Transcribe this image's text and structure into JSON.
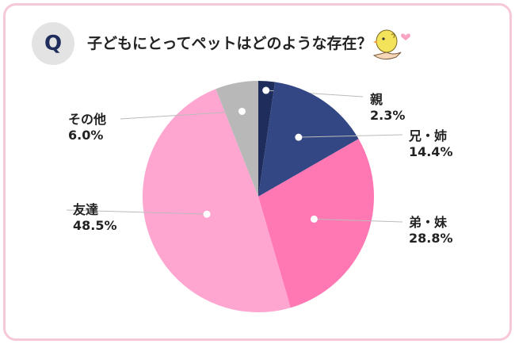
{
  "question": {
    "badge": "Q",
    "text": "子どもにとってペットはどのような存在？"
  },
  "icon": "chick-holding-heart-icon",
  "colors": {
    "border": "#f7c9d6",
    "parents": "#1f2d5c",
    "older_siblings": "#344785",
    "younger_siblings": "#ff78b4",
    "friends": "#ffa6d0",
    "other": "#b8b8b8"
  },
  "chart_data": {
    "type": "pie",
    "start": "12 o'clock",
    "direction": "clockwise",
    "slices": [
      {
        "label": "親",
        "value": 2.3,
        "display": "2.3%",
        "color": "#1f2d5c"
      },
      {
        "label": "兄・姉",
        "value": 14.4,
        "display": "14.4%",
        "color": "#344785"
      },
      {
        "label": "弟・妹",
        "value": 28.8,
        "display": "28.8%",
        "color": "#ff78b4"
      },
      {
        "label": "友達",
        "value": 48.5,
        "display": "48.5%",
        "color": "#ffa6d0"
      },
      {
        "label": "その他",
        "value": 6.0,
        "display": "6.0%",
        "color": "#b8b8b8"
      }
    ]
  }
}
